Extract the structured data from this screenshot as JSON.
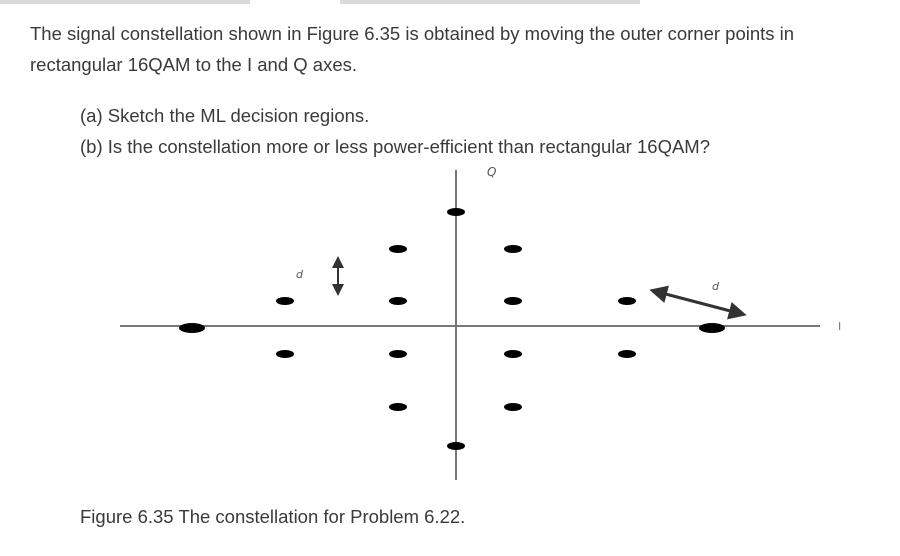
{
  "problem": {
    "intro": "The signal constellation shown in Figure 6.35 is obtained by moving the outer corner points in rectangular 16QAM to the I and Q axes.",
    "part_a": "(a) Sketch the ML decision regions.",
    "part_b": "(b) Is the constellation more or less power-efficient than rectangular 16QAM?"
  },
  "figure": {
    "q_axis_label": "Q",
    "i_axis_label": "I",
    "distance_label_left": "d",
    "distance_label_right": "d",
    "caption": "Figure 6.35 The constellation for Problem 6.22."
  }
}
